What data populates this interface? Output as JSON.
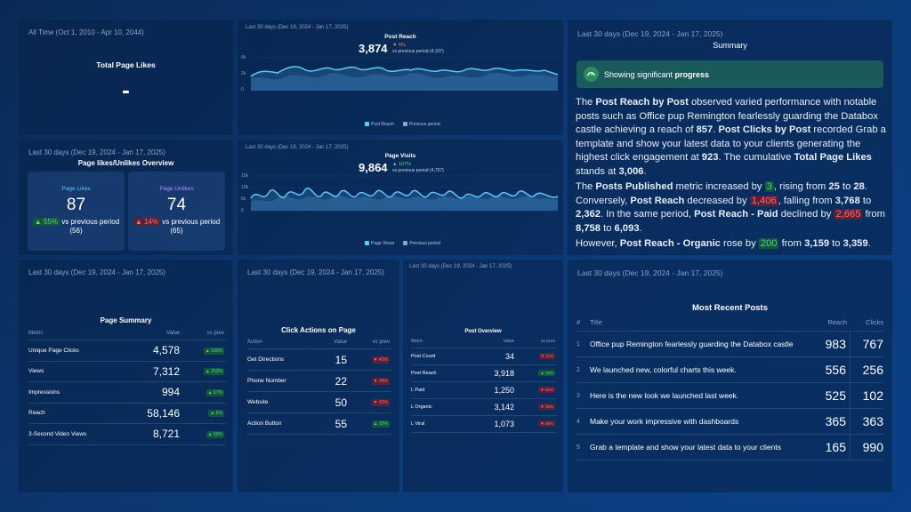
{
  "total_likes": {
    "time_range": "All Time (Oct 1, 2010 - Apr 10, 2044)",
    "title": "Total Page Likes",
    "value": "-"
  },
  "post_reach": {
    "time_range": "Last 30 days (Dec 19, 2024 - Jan 17, 2025)",
    "title": "Post Reach",
    "value": "3,874",
    "delta": "▼ 6%",
    "comparison": "vs previous period (4,107)",
    "y_ticks": [
      "4k",
      "2k",
      "0"
    ],
    "legend_current": "Post Reach",
    "legend_previous": "Previous period"
  },
  "page_visits": {
    "time_range": "Last 30 days (Dec 19, 2024 - Jan 17, 2025)",
    "title": "Page Visits",
    "value": "9,864",
    "delta": "▲ 107%",
    "comparison": "vs previous period (4,767)",
    "y_ticks": [
      "15k",
      "10k",
      "5k",
      "0"
    ],
    "legend_current": "Page Views",
    "legend_previous": "Previous period"
  },
  "likes_overview": {
    "time_range": "Last 30 days (Dec 19, 2024 - Jan 17, 2025)",
    "title": "Page likes/Unlikes Overview",
    "likes_label": "Page Likes",
    "likes_value": "87",
    "likes_delta": "▲ 55%",
    "likes_cmp": "vs previous period",
    "likes_prev": "(56)",
    "unlikes_label": "Page Unlikes",
    "unlikes_value": "74",
    "unlikes_delta": "▲ 14%",
    "unlikes_cmp": "vs previous period",
    "unlikes_prev": "(65)"
  },
  "summary": {
    "time_range": "Last 30 days (Dec 19, 2024 - Jan 17, 2025)",
    "title": "Summary",
    "banner_pre": "Showing significant ",
    "banner_bold": "progress"
  },
  "page_summary": {
    "time_range": "Last 30 days (Dec 19, 2024 - Jan 17, 2025)",
    "title": "Page Summary",
    "col_metric": "Metric",
    "col_value": "Value",
    "col_prev": "vs prev",
    "rows": [
      {
        "metric": "Unique Page Clicks",
        "value": "4,578",
        "delta": "▲ 193%",
        "dir": "up"
      },
      {
        "metric": "Views",
        "value": "7,312",
        "delta": "▲ 252%",
        "dir": "up"
      },
      {
        "metric": "Impressions",
        "value": "994",
        "delta": "▲ 67%",
        "dir": "up"
      },
      {
        "metric": "Reach",
        "value": "58,146",
        "delta": "▲ 6%",
        "dir": "up"
      },
      {
        "metric": "3-Second Video Views",
        "value": "8,721",
        "delta": "▲ 59%",
        "dir": "up"
      }
    ]
  },
  "click_actions": {
    "time_range": "Last 30 days (Dec 19, 2024 - Jan 17, 2025)",
    "title": "Click Actions on Page",
    "col_action": "Action",
    "col_value": "Value",
    "col_prev": "vs prev",
    "rows": [
      {
        "action": "Get Directions",
        "value": "15",
        "delta": "▼ 42%",
        "dir": "dn"
      },
      {
        "action": "Phone Number",
        "value": "22",
        "delta": "▼ 24%",
        "dir": "dn"
      },
      {
        "action": "Website",
        "value": "50",
        "delta": "▼ 31%",
        "dir": "dn"
      },
      {
        "action": "Action Button",
        "value": "55",
        "delta": "▲ 10%",
        "dir": "up"
      }
    ]
  },
  "post_overview": {
    "time_range": "Last 30 days (Dec 19, 2024 - Jan 17, 2025)",
    "title": "Post Overview",
    "col_metric": "Metric",
    "col_value": "Value",
    "col_prev": "vs prev",
    "rows": [
      {
        "metric": "Post Count",
        "value": "34",
        "delta": "▼ 11%",
        "dir": "dn"
      },
      {
        "metric": "Post Reach",
        "value": "3,918",
        "delta": "▲ 38%",
        "dir": "up"
      },
      {
        "metric": "L Paid",
        "value": "1,250",
        "delta": "▼ 65%",
        "dir": "dn"
      },
      {
        "metric": "L Organic",
        "value": "3,142",
        "delta": "▼ 38%",
        "dir": "dn"
      },
      {
        "metric": "L Viral",
        "value": "1,073",
        "delta": "▼ 59%",
        "dir": "dn"
      }
    ]
  },
  "recent_posts": {
    "time_range": "Last 30 days (Dec 19, 2024 - Jan 17, 2025)",
    "title": "Most Recent Posts",
    "col_num": "#",
    "col_title": "Title",
    "col_reach": "Reach",
    "col_clicks": "Clicks",
    "rows": [
      {
        "n": "1",
        "title": "Office pup Remington fearlessly guarding the Databox castle",
        "reach": "983",
        "clicks": "767"
      },
      {
        "n": "2",
        "title": "We launched new, colorful charts this week.",
        "reach": "556",
        "clicks": "256"
      },
      {
        "n": "3",
        "title": "Here is the new look we launched last week.",
        "reach": "525",
        "clicks": "102"
      },
      {
        "n": "4",
        "title": "Make your work impressive with dashboards",
        "reach": "365",
        "clicks": "363"
      },
      {
        "n": "5",
        "title": "Grab a template and show your latest data to your clients",
        "reach": "165",
        "clicks": "990"
      }
    ]
  },
  "colors": {
    "accent_line": "#5ec8ff",
    "up": "#4fd48a",
    "down": "#ff6b7a"
  }
}
